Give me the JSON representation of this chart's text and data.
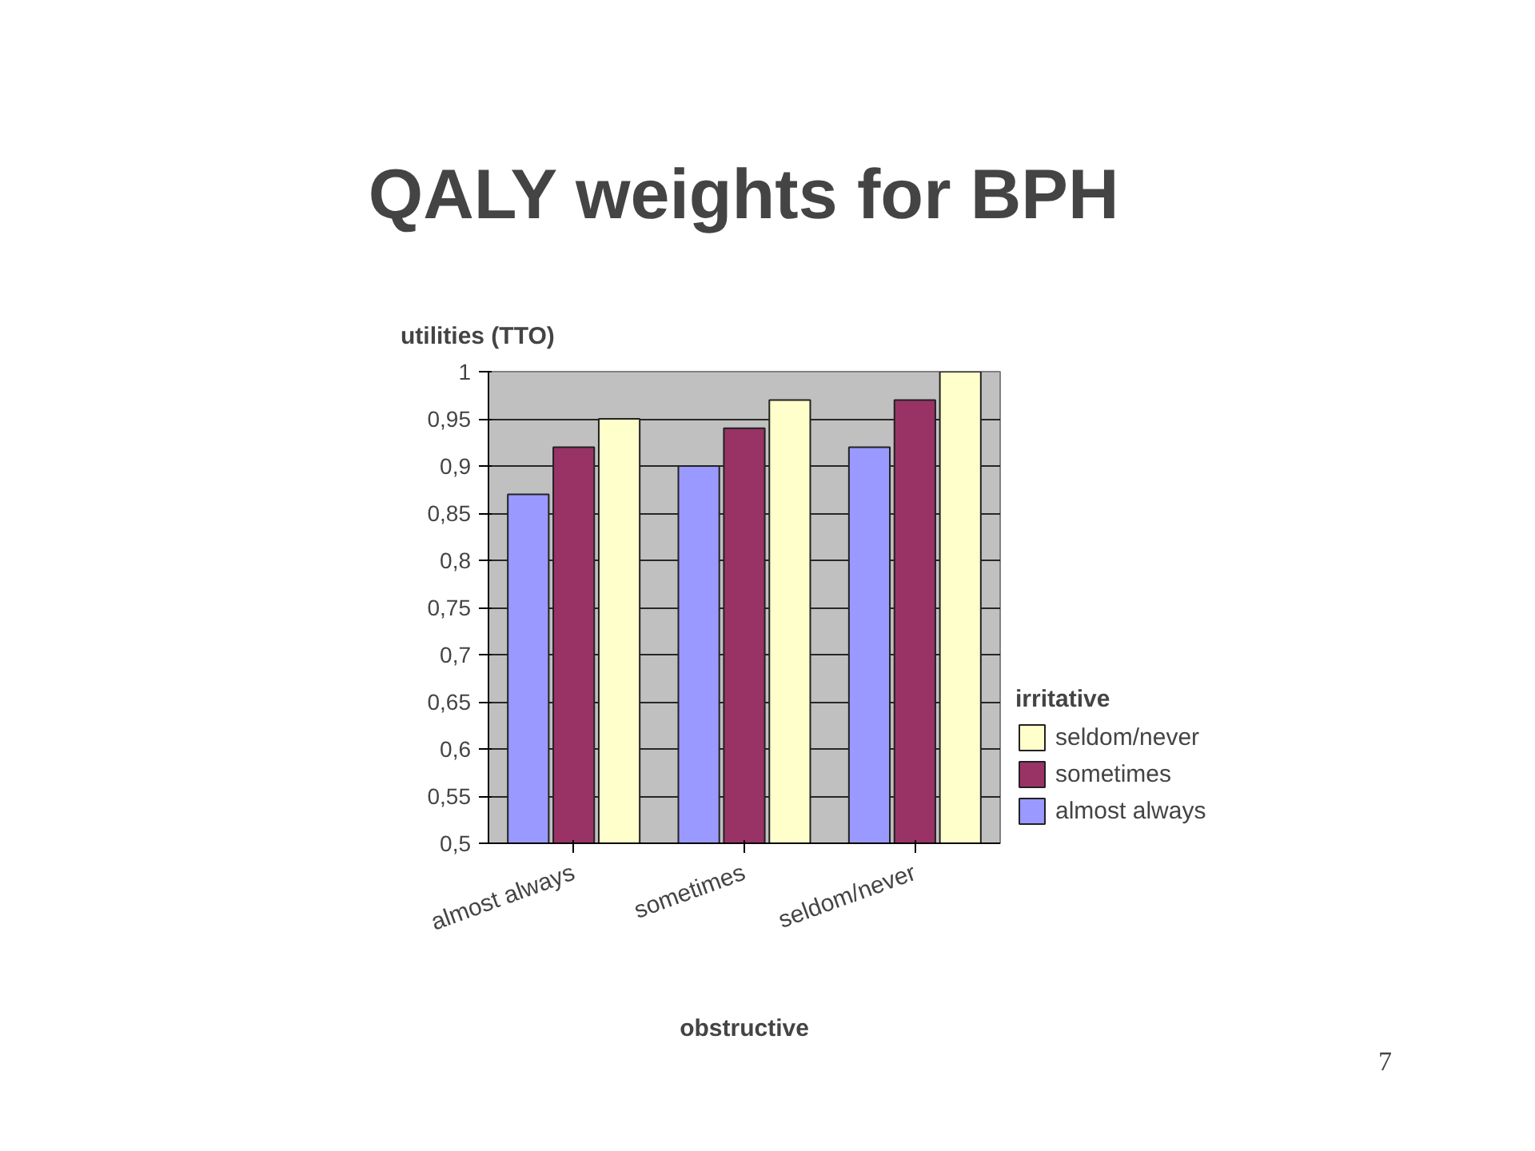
{
  "chart_data": {
    "type": "bar",
    "title": "QALY weights for BPH",
    "xlabel": "obstructive",
    "ylabel": "utilities (TTO)",
    "legend_title": "irritative",
    "categories": [
      "almost always",
      "sometimes",
      "seldom/never"
    ],
    "series": [
      {
        "name": "almost always",
        "color": "#9999ff",
        "values": [
          0.87,
          0.9,
          0.92
        ]
      },
      {
        "name": "sometimes",
        "color": "#993366",
        "values": [
          0.92,
          0.94,
          0.97
        ]
      },
      {
        "name": "seldom/never",
        "color": "#ffffcc",
        "values": [
          0.95,
          0.97,
          1.0
        ]
      }
    ],
    "ylim": [
      0.5,
      1
    ],
    "yticks": [
      {
        "value": 0.5,
        "label": "0,5"
      },
      {
        "value": 0.55,
        "label": "0,55"
      },
      {
        "value": 0.6,
        "label": "0,6"
      },
      {
        "value": 0.65,
        "label": "0,65"
      },
      {
        "value": 0.7,
        "label": "0,7"
      },
      {
        "value": 0.75,
        "label": "0,75"
      },
      {
        "value": 0.8,
        "label": "0,8"
      },
      {
        "value": 0.85,
        "label": "0,85"
      },
      {
        "value": 0.9,
        "label": "0,9"
      },
      {
        "value": 0.95,
        "label": "0,95"
      },
      1
    ],
    "grid": "y",
    "legend": "right",
    "annotations": [
      "7"
    ]
  }
}
